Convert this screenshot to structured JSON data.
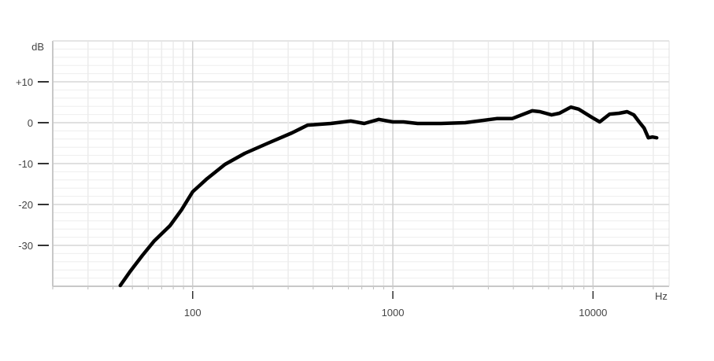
{
  "chart_data": {
    "type": "line",
    "title": "",
    "xlabel": "Hz",
    "ylabel": "dB",
    "x_scale": "log",
    "xlim": [
      20,
      24000
    ],
    "ylim": [
      -40,
      20
    ],
    "grid": true,
    "x_ticks": [
      100,
      1000,
      10000
    ],
    "x_tick_labels": [
      "100",
      "1000",
      "10000"
    ],
    "y_ticks": [
      10,
      0,
      -10,
      -20,
      -30
    ],
    "y_tick_labels": [
      "+10",
      "0",
      "-10",
      "-20",
      "-30"
    ],
    "line_color": "#000000",
    "series": [
      {
        "x": [
          43.5,
          49,
          56,
          64,
          77,
          88,
          100,
          118,
          145,
          182,
          238,
          313,
          375,
          490,
          616,
          720,
          850,
          1000,
          1130,
          1330,
          1740,
          2300,
          3300,
          3940,
          4970,
          5430,
          6210,
          6790,
          7750,
          8480,
          9860,
          10800,
          12100,
          13500,
          14800,
          16000,
          17000,
          18000,
          18900,
          19800,
          20800
        ],
        "y": [
          -39.8,
          -36.2,
          -32.5,
          -29,
          -25.2,
          -21.3,
          -16.9,
          -13.7,
          -10.2,
          -7.5,
          -5,
          -2.5,
          -0.6,
          -0.2,
          0.4,
          -0.2,
          0.8,
          0.2,
          0.2,
          -0.2,
          -0.2,
          0,
          1,
          1,
          2.9,
          2.7,
          1.9,
          2.3,
          3.8,
          3.3,
          1.3,
          0.2,
          2.1,
          2.3,
          2.7,
          1.9,
          0.2,
          -1.3,
          -3.7,
          -3.5,
          -3.7
        ]
      }
    ]
  }
}
